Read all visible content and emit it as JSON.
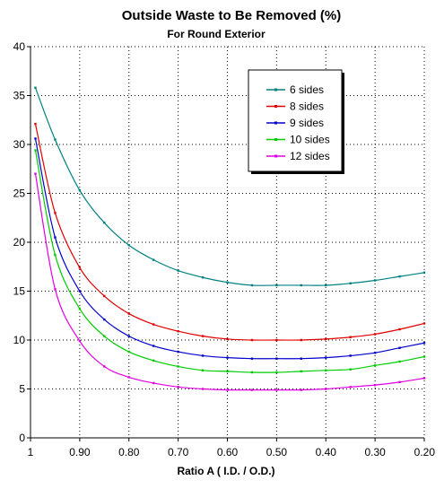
{
  "chart_data": {
    "type": "line",
    "title": "Outside Waste to Be Removed   (%)",
    "subtitle": "For Round Exterior",
    "xlabel": "Ratio A ( I.D. / O.D.)",
    "ylabel": "",
    "xlim": [
      1.0,
      0.2
    ],
    "ylim": [
      0,
      40
    ],
    "x_reversed": true,
    "grid": true,
    "legend_position": "top-right",
    "x_ticks": [
      {
        "value": 1.0,
        "label": "1"
      },
      {
        "value": 0.9,
        "label": "0.90"
      },
      {
        "value": 0.8,
        "label": "0.80"
      },
      {
        "value": 0.7,
        "label": "0.70"
      },
      {
        "value": 0.6,
        "label": "0.60"
      },
      {
        "value": 0.5,
        "label": "0.50"
      },
      {
        "value": 0.4,
        "label": "0.40"
      },
      {
        "value": 0.3,
        "label": "0.30"
      },
      {
        "value": 0.2,
        "label": "0.20"
      }
    ],
    "y_ticks": [
      {
        "value": 0,
        "label": "0"
      },
      {
        "value": 5,
        "label": "5"
      },
      {
        "value": 10,
        "label": "10"
      },
      {
        "value": 15,
        "label": "15"
      },
      {
        "value": 20,
        "label": "20"
      },
      {
        "value": 25,
        "label": "25"
      },
      {
        "value": 30,
        "label": "30"
      },
      {
        "value": 35,
        "label": "35"
      },
      {
        "value": 40,
        "label": "40"
      }
    ],
    "x": [
      0.99,
      0.95,
      0.9,
      0.85,
      0.8,
      0.75,
      0.7,
      0.65,
      0.6,
      0.55,
      0.5,
      0.45,
      0.4,
      0.35,
      0.3,
      0.25,
      0.2
    ],
    "series": [
      {
        "name": "6 sides",
        "color": "#008080",
        "values": [
          35.8,
          30.5,
          25.3,
          22.0,
          19.7,
          18.2,
          17.1,
          16.4,
          15.9,
          15.6,
          15.6,
          15.6,
          15.6,
          15.8,
          16.1,
          16.5,
          16.9
        ]
      },
      {
        "name": "8 sides",
        "color": "#e00000",
        "values": [
          32.1,
          23.0,
          17.4,
          14.5,
          12.7,
          11.6,
          10.9,
          10.4,
          10.1,
          10.0,
          10.0,
          10.0,
          10.1,
          10.3,
          10.6,
          11.1,
          11.7
        ]
      },
      {
        "name": "9 sides",
        "color": "#0000cc",
        "values": [
          30.6,
          20.5,
          15.0,
          12.1,
          10.4,
          9.4,
          8.8,
          8.4,
          8.2,
          8.1,
          8.1,
          8.1,
          8.2,
          8.4,
          8.7,
          9.2,
          9.7
        ]
      },
      {
        "name": "10 sides",
        "color": "#00cc00",
        "values": [
          29.4,
          18.7,
          13.2,
          10.4,
          8.8,
          7.9,
          7.3,
          6.9,
          6.8,
          6.7,
          6.7,
          6.8,
          6.9,
          7.0,
          7.4,
          7.8,
          8.3
        ]
      },
      {
        "name": "12 sides",
        "color": "#e000e0",
        "values": [
          27.0,
          15.2,
          9.9,
          7.3,
          6.2,
          5.6,
          5.2,
          5.0,
          4.9,
          4.9,
          4.9,
          4.9,
          5.0,
          5.2,
          5.4,
          5.7,
          6.1
        ]
      }
    ]
  }
}
